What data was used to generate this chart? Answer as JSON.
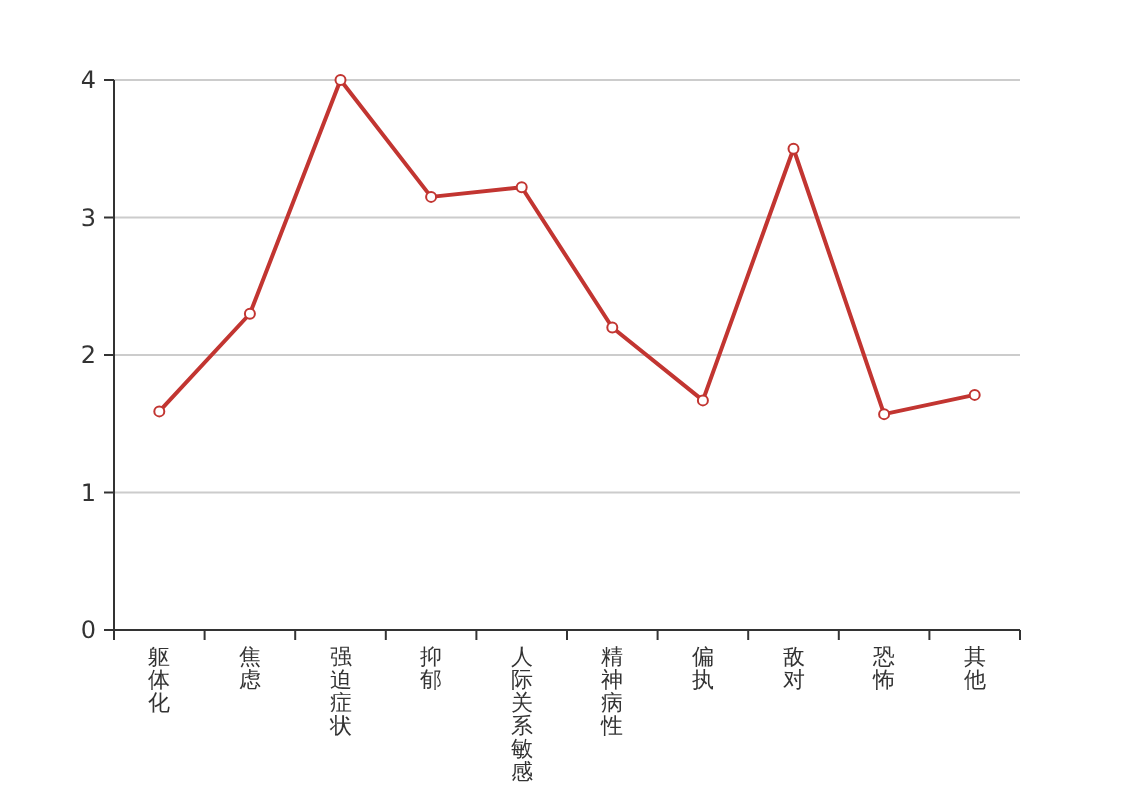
{
  "chart_data": {
    "type": "line",
    "categories": [
      "躯体化",
      "焦虑",
      "强迫症状",
      "抑郁",
      "人际关系敏感",
      "精神病性",
      "偏执",
      "敌对",
      "恐怖",
      "其他"
    ],
    "series": [
      {
        "color": "#c23531",
        "values": [
          1.59,
          2.3,
          4.0,
          3.15,
          3.22,
          2.2,
          1.67,
          3.5,
          1.57,
          1.71
        ]
      }
    ],
    "ylim": [
      0,
      4
    ],
    "yticks": [
      0,
      1,
      2,
      3,
      4
    ],
    "grid": "y",
    "marker": "circle",
    "line_style": "solid"
  }
}
